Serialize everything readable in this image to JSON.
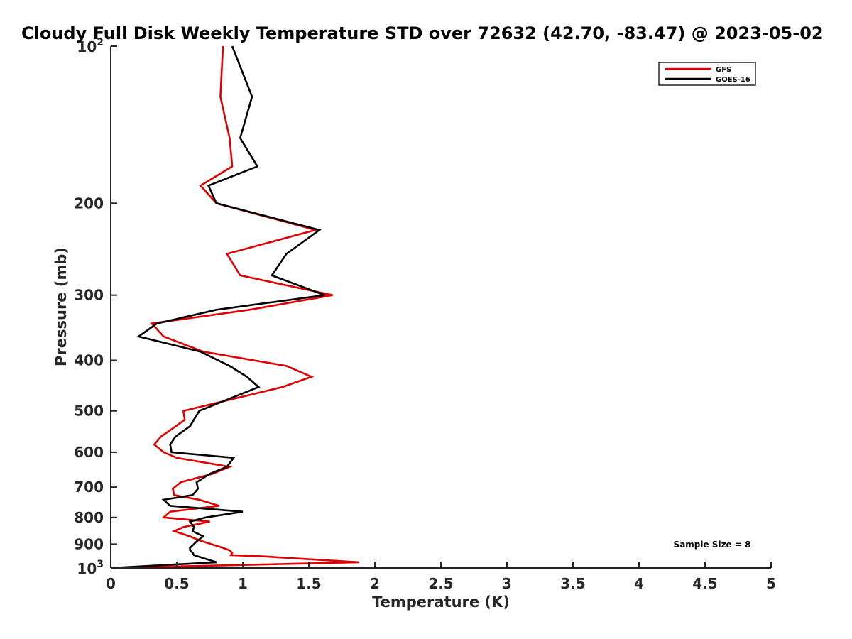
{
  "chart_data": {
    "type": "line",
    "title": "Cloudy Full Disk Weekly Temperature STD over 72632 (42.70, -83.47) @ 2023-05-02",
    "xlabel": "Temperature (K)",
    "ylabel": "Pressure (mb)",
    "xlim": [
      0,
      5
    ],
    "ylim": [
      100,
      1000
    ],
    "y_scale": "log",
    "y_reversed": true,
    "grid": false,
    "legend_position": "top-right",
    "x_ticks": [
      0,
      0.5,
      1,
      1.5,
      2,
      2.5,
      3,
      3.5,
      4,
      4.5,
      5
    ],
    "x_tick_labels": [
      "0",
      "0.5",
      "1",
      "1.5",
      "2",
      "2.5",
      "3",
      "3.5",
      "4",
      "4.5",
      "5"
    ],
    "y_ticks": [
      200,
      300,
      400,
      500,
      600,
      700,
      800,
      900
    ],
    "y_tick_labels": [
      "200",
      "300",
      "400",
      "500",
      "600",
      "700",
      "800",
      "900"
    ],
    "y_end_labels": [
      {
        "value": 100,
        "base": "10",
        "exp": "2"
      },
      {
        "value": 1000,
        "base": "10",
        "exp": "3"
      }
    ],
    "annotation": "Sample Size = 8",
    "series": [
      {
        "name": "GFS",
        "color": "#e00000",
        "points": [
          {
            "t": 0.85,
            "p": 100
          },
          {
            "t": 0.83,
            "p": 125
          },
          {
            "t": 0.9,
            "p": 150
          },
          {
            "t": 0.92,
            "p": 170
          },
          {
            "t": 0.68,
            "p": 185
          },
          {
            "t": 0.8,
            "p": 200
          },
          {
            "t": 1.55,
            "p": 225
          },
          {
            "t": 0.88,
            "p": 250
          },
          {
            "t": 0.98,
            "p": 275
          },
          {
            "t": 1.68,
            "p": 300
          },
          {
            "t": 1.05,
            "p": 320
          },
          {
            "t": 0.31,
            "p": 340
          },
          {
            "t": 0.4,
            "p": 360
          },
          {
            "t": 0.7,
            "p": 385
          },
          {
            "t": 1.33,
            "p": 410
          },
          {
            "t": 1.52,
            "p": 430
          },
          {
            "t": 1.3,
            "p": 450
          },
          {
            "t": 0.55,
            "p": 500
          },
          {
            "t": 0.56,
            "p": 520
          },
          {
            "t": 0.47,
            "p": 540
          },
          {
            "t": 0.38,
            "p": 560
          },
          {
            "t": 0.33,
            "p": 580
          },
          {
            "t": 0.4,
            "p": 600
          },
          {
            "t": 0.5,
            "p": 615
          },
          {
            "t": 0.9,
            "p": 640
          },
          {
            "t": 0.77,
            "p": 660
          },
          {
            "t": 0.53,
            "p": 685
          },
          {
            "t": 0.47,
            "p": 705
          },
          {
            "t": 0.48,
            "p": 725
          },
          {
            "t": 0.67,
            "p": 740
          },
          {
            "t": 0.82,
            "p": 760
          },
          {
            "t": 0.45,
            "p": 780
          },
          {
            "t": 0.4,
            "p": 800
          },
          {
            "t": 0.75,
            "p": 815
          },
          {
            "t": 0.55,
            "p": 835
          },
          {
            "t": 0.48,
            "p": 850
          },
          {
            "t": 0.6,
            "p": 870
          },
          {
            "t": 0.67,
            "p": 885
          },
          {
            "t": 0.85,
            "p": 915
          },
          {
            "t": 0.9,
            "p": 925
          },
          {
            "t": 0.92,
            "p": 935
          },
          {
            "t": 0.91,
            "p": 945
          },
          {
            "t": 1.15,
            "p": 950
          },
          {
            "t": 1.88,
            "p": 975
          },
          {
            "t": 0.0,
            "p": 1000
          }
        ]
      },
      {
        "name": "GOES-16",
        "color": "#000000",
        "points": [
          {
            "t": 0.92,
            "p": 100
          },
          {
            "t": 1.07,
            "p": 125
          },
          {
            "t": 0.98,
            "p": 150
          },
          {
            "t": 1.11,
            "p": 170
          },
          {
            "t": 0.74,
            "p": 185
          },
          {
            "t": 0.8,
            "p": 200
          },
          {
            "t": 1.58,
            "p": 225
          },
          {
            "t": 1.33,
            "p": 250
          },
          {
            "t": 1.22,
            "p": 275
          },
          {
            "t": 1.62,
            "p": 300
          },
          {
            "t": 0.8,
            "p": 320
          },
          {
            "t": 0.35,
            "p": 340
          },
          {
            "t": 0.21,
            "p": 360
          },
          {
            "t": 0.68,
            "p": 385
          },
          {
            "t": 0.9,
            "p": 410
          },
          {
            "t": 1.03,
            "p": 430
          },
          {
            "t": 1.12,
            "p": 450
          },
          {
            "t": 0.67,
            "p": 500
          },
          {
            "t": 0.6,
            "p": 535
          },
          {
            "t": 0.49,
            "p": 560
          },
          {
            "t": 0.45,
            "p": 580
          },
          {
            "t": 0.46,
            "p": 600
          },
          {
            "t": 0.93,
            "p": 615
          },
          {
            "t": 0.88,
            "p": 640
          },
          {
            "t": 0.75,
            "p": 660
          },
          {
            "t": 0.65,
            "p": 685
          },
          {
            "t": 0.66,
            "p": 705
          },
          {
            "t": 0.62,
            "p": 725
          },
          {
            "t": 0.4,
            "p": 740
          },
          {
            "t": 0.45,
            "p": 760
          },
          {
            "t": 1.0,
            "p": 780
          },
          {
            "t": 0.72,
            "p": 800
          },
          {
            "t": 0.6,
            "p": 815
          },
          {
            "t": 0.63,
            "p": 835
          },
          {
            "t": 0.62,
            "p": 850
          },
          {
            "t": 0.7,
            "p": 870
          },
          {
            "t": 0.66,
            "p": 885
          },
          {
            "t": 0.6,
            "p": 915
          },
          {
            "t": 0.6,
            "p": 925
          },
          {
            "t": 0.62,
            "p": 935
          },
          {
            "t": 0.63,
            "p": 945
          },
          {
            "t": 0.8,
            "p": 975
          },
          {
            "t": 0.0,
            "p": 1000
          }
        ]
      }
    ]
  }
}
